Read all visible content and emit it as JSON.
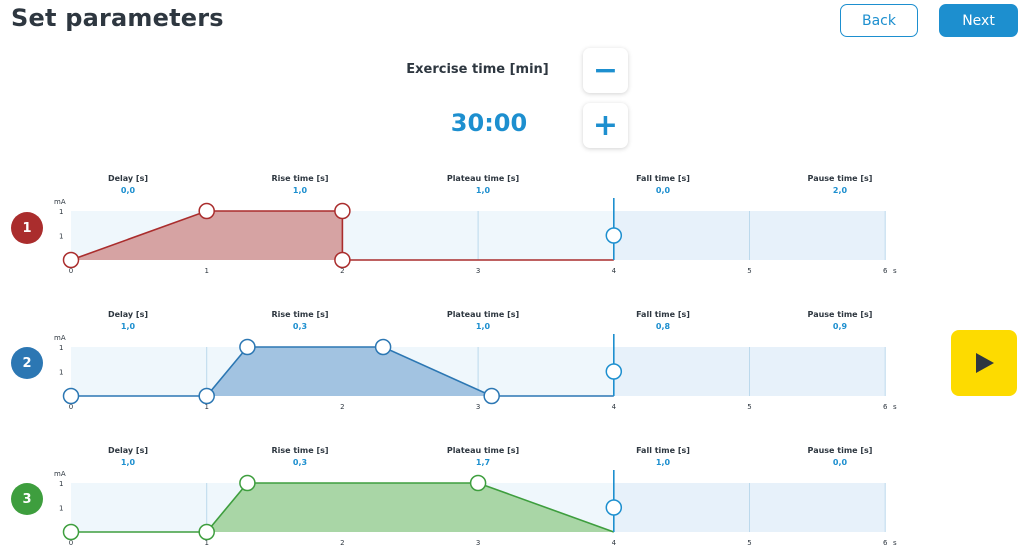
{
  "header": {
    "title": "Set parameters",
    "back_label": "Back",
    "next_label": "Next"
  },
  "exercise": {
    "label": "Exercise time [min]",
    "value": "30:00",
    "minus_symbol": "−",
    "plus_symbol": "+"
  },
  "play": {
    "icon": "play-icon"
  },
  "axis": {
    "unit_y": "mA",
    "unit_x": "s",
    "y_ticks": [
      "1",
      "1"
    ],
    "x_ticks": [
      "0",
      "1",
      "2",
      "3",
      "4",
      "5",
      "6"
    ]
  },
  "channels": [
    {
      "number": "1",
      "color": "#aa2d2d",
      "fill": "#d6a3a3",
      "params": [
        {
          "label": "Delay [s]",
          "value": "0,0"
        },
        {
          "label": "Rise time [s]",
          "value": "1,0"
        },
        {
          "label": "Plateau time [s]",
          "value": "1,0"
        },
        {
          "label": "Fall time [s]",
          "value": "0,0"
        },
        {
          "label": "Pause time [s]",
          "value": "2,0"
        }
      ],
      "waveform": [
        [
          0,
          0
        ],
        [
          1,
          1
        ],
        [
          2,
          1
        ],
        [
          2,
          0
        ],
        [
          4,
          0
        ]
      ],
      "pause_marker_t": 4
    },
    {
      "number": "2",
      "color": "#2c77b3",
      "fill": "#a2c3e1",
      "params": [
        {
          "label": "Delay [s]",
          "value": "1,0"
        },
        {
          "label": "Rise time [s]",
          "value": "0,3"
        },
        {
          "label": "Plateau time [s]",
          "value": "1,0"
        },
        {
          "label": "Fall time [s]",
          "value": "0,8"
        },
        {
          "label": "Pause time [s]",
          "value": "0,9"
        }
      ],
      "waveform": [
        [
          0,
          0
        ],
        [
          1,
          0
        ],
        [
          1.3,
          1
        ],
        [
          2.3,
          1
        ],
        [
          3.1,
          0
        ],
        [
          4,
          0
        ]
      ],
      "pause_marker_t": 4
    },
    {
      "number": "3",
      "color": "#3e9e3e",
      "fill": "#a9d6a6",
      "params": [
        {
          "label": "Delay [s]",
          "value": "1,0"
        },
        {
          "label": "Rise time [s]",
          "value": "0,3"
        },
        {
          "label": "Plateau time [s]",
          "value": "1,7"
        },
        {
          "label": "Fall time [s]",
          "value": "1,0"
        },
        {
          "label": "Pause time [s]",
          "value": "0,0"
        }
      ],
      "waveform": [
        [
          0,
          0
        ],
        [
          1,
          0
        ],
        [
          1.3,
          1
        ],
        [
          3,
          1
        ],
        [
          4,
          0
        ]
      ],
      "pause_marker_t": 4
    }
  ]
}
